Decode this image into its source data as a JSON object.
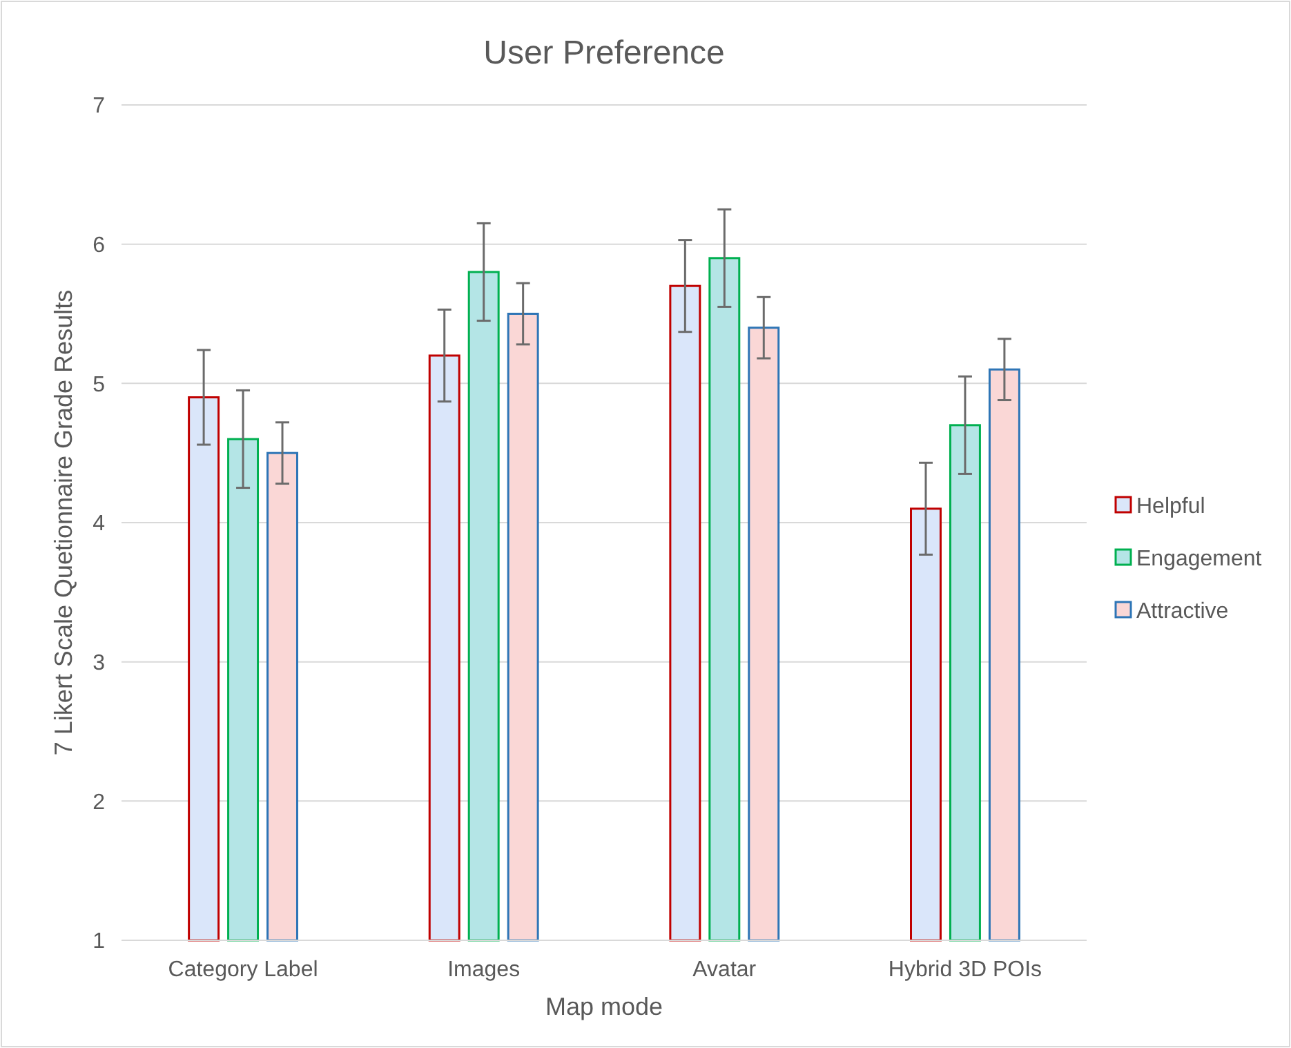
{
  "chart_data": {
    "type": "bar",
    "title": "User Preference",
    "xlabel": "Map mode",
    "ylabel": "7 Likert Scale Quetionnaire Grade Results",
    "categories": [
      "Category Label",
      "Images",
      "Avatar",
      "Hybrid 3D POIs"
    ],
    "series": [
      {
        "name": "Helpful",
        "color": "#dae6fa",
        "values": [
          4.9,
          5.2,
          5.7,
          4.1
        ],
        "errors": [
          0.34,
          0.33,
          0.33,
          0.33
        ]
      },
      {
        "name": "Engagement",
        "color": "#b4e5e6",
        "values": [
          4.6,
          5.8,
          5.9,
          4.7
        ],
        "errors": [
          0.35,
          0.35,
          0.35,
          0.35
        ]
      },
      {
        "name": "Attractive",
        "color": "#fad7d6",
        "values": [
          4.5,
          5.5,
          5.4,
          5.1
        ],
        "errors": [
          0.22,
          0.22,
          0.22,
          0.22
        ]
      }
    ],
    "ylim": [
      1,
      7
    ],
    "yticks": [
      1,
      2,
      3,
      4,
      5,
      6,
      7
    ],
    "grid": "y",
    "legend": "right"
  }
}
